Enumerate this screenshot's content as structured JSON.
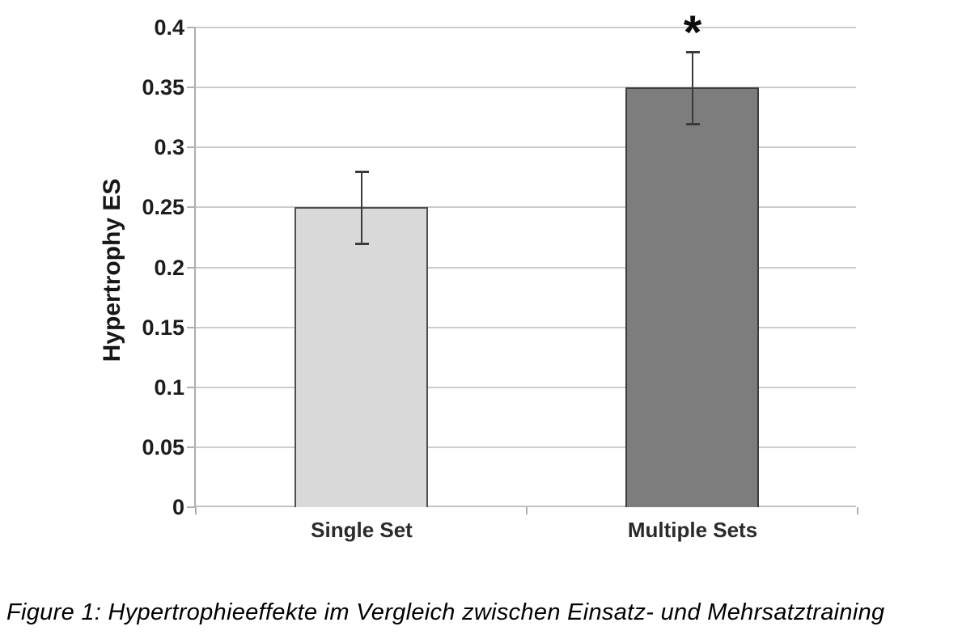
{
  "chart_data": {
    "type": "bar",
    "categories": [
      "Single Set",
      "Multiple Sets"
    ],
    "values": [
      0.25,
      0.35
    ],
    "errors": [
      {
        "low": 0.22,
        "high": 0.28
      },
      {
        "low": 0.32,
        "high": 0.38
      }
    ],
    "title": "",
    "xlabel": "",
    "ylabel": "Hypertrophy ES",
    "ylim": [
      0,
      0.4
    ],
    "yticks": [
      0,
      0.05,
      0.1,
      0.15,
      0.2,
      0.25,
      0.3,
      0.35,
      0.4
    ],
    "ytick_labels": [
      "0",
      "0.05",
      "0.1",
      "0.15",
      "0.2",
      "0.25",
      "0.3",
      "0.35",
      "0.4"
    ],
    "grid": true,
    "legend": false,
    "bar_fill_colors": [
      "#d9d9d9",
      "#7d7d7d"
    ],
    "bar_border_colors": [
      "#4f4f4f",
      "#3d3d3d"
    ],
    "error_bar_color": "#3a3a3a",
    "significance_marker": {
      "text": "*",
      "category_index": 1
    },
    "caption": "Figure 1: Hypertrophieeffekte im Vergleich zwischen Einsatz- und Mehrsatztraining"
  }
}
